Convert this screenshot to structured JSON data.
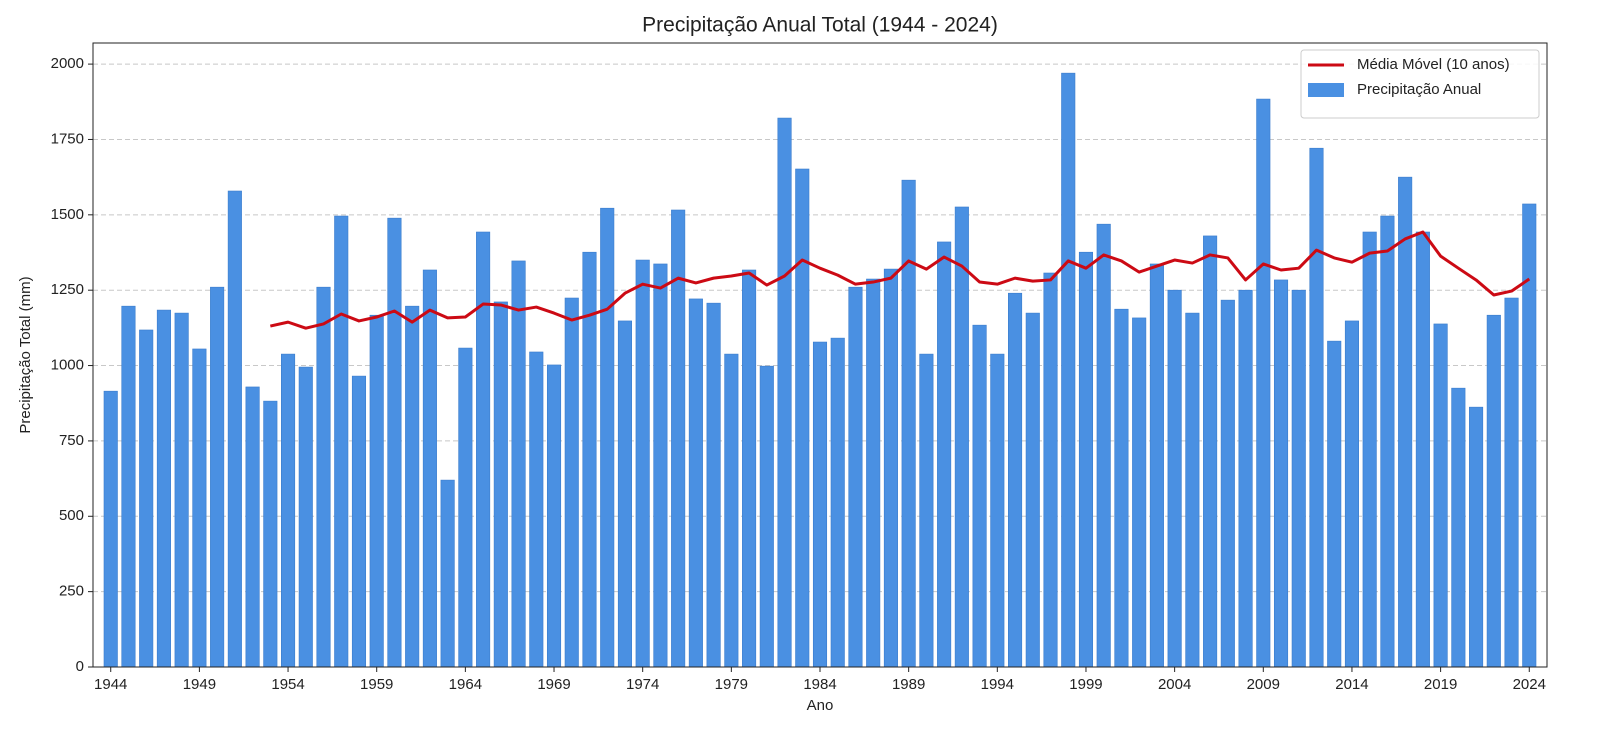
{
  "chart_data": {
    "type": "bar",
    "title": "Precipitação Anual Total (1944 - 2024)",
    "x_label": "Ano",
    "y_label": "Precipitação Total (mm)",
    "x": [
      1944,
      1945,
      1946,
      1947,
      1948,
      1949,
      1950,
      1951,
      1952,
      1953,
      1954,
      1955,
      1956,
      1957,
      1958,
      1959,
      1960,
      1961,
      1962,
      1963,
      1964,
      1965,
      1966,
      1967,
      1968,
      1969,
      1970,
      1971,
      1972,
      1973,
      1974,
      1975,
      1976,
      1977,
      1978,
      1979,
      1980,
      1981,
      1982,
      1983,
      1984,
      1985,
      1986,
      1987,
      1988,
      1989,
      1990,
      1991,
      1992,
      1993,
      1994,
      1995,
      1996,
      1997,
      1998,
      1999,
      2000,
      2001,
      2002,
      2003,
      2004,
      2005,
      2006,
      2007,
      2008,
      2009,
      2010,
      2011,
      2012,
      2013,
      2014,
      2015,
      2016,
      2017,
      2018,
      2019,
      2020,
      2021,
      2022,
      2023,
      2024
    ],
    "series": [
      {
        "name": "Média Móvel (10 anos)",
        "type": "line",
        "color": "#cc0a14",
        "values": [
          null,
          null,
          null,
          null,
          null,
          null,
          null,
          null,
          null,
          1131,
          1144,
          1124,
          1138,
          1171,
          1148,
          1161,
          1181,
          1144,
          1184,
          1158,
          1161,
          1204,
          1201,
          1184,
          1194,
          1174,
          1151,
          1167,
          1187,
          1240,
          1270,
          1257,
          1290,
          1274,
          1290,
          1297,
          1307,
          1267,
          1297,
          1350,
          1323,
          1300,
          1270,
          1277,
          1290,
          1347,
          1320,
          1360,
          1330,
          1277,
          1270,
          1290,
          1280,
          1284,
          1347,
          1323,
          1367,
          1347,
          1310,
          1330,
          1350,
          1340,
          1367,
          1357,
          1284,
          1337,
          1317,
          1323,
          1383,
          1357,
          1343,
          1373,
          1380,
          1420,
          1443,
          1363,
          1323,
          1284,
          1234,
          1247,
          1287
        ]
      },
      {
        "name": "Precipitação Anual",
        "type": "bar",
        "color": "#4a90e2",
        "values": [
          915,
          1197,
          1118,
          1184,
          1174,
          1055,
          1260,
          1579,
          929,
          882,
          1038,
          995,
          1260,
          1496,
          965,
          1167,
          1489,
          1197,
          1317,
          620,
          1058,
          1443,
          1211,
          1347,
          1045,
          1002,
          1224,
          1376,
          1522,
          1148,
          1350,
          1337,
          1516,
          1221,
          1207,
          1038,
          1317,
          998,
          1821,
          1652,
          1078,
          1091,
          1260,
          1287,
          1320,
          1615,
          1038,
          1410,
          1526,
          1134,
          1038,
          1240,
          1174,
          1307,
          1970,
          1376,
          1469,
          1187,
          1158,
          1337,
          1250,
          1174,
          1430,
          1217,
          1250,
          1884,
          1284,
          1250,
          1721,
          1081,
          1148,
          1443,
          1496,
          1625,
          1443,
          1138,
          925,
          862,
          1167,
          1224,
          1536
        ]
      }
    ],
    "xlim": [
      1943,
      2025
    ],
    "xticks": [
      1944,
      1949,
      1954,
      1959,
      1964,
      1969,
      1974,
      1979,
      1984,
      1989,
      1994,
      1999,
      2004,
      2009,
      2014,
      2019,
      2024
    ],
    "ylim": [
      0,
      2070
    ],
    "yticks": [
      0,
      250,
      500,
      750,
      1000,
      1250,
      1500,
      1750,
      2000
    ],
    "grid": true,
    "legend": "upper right"
  }
}
